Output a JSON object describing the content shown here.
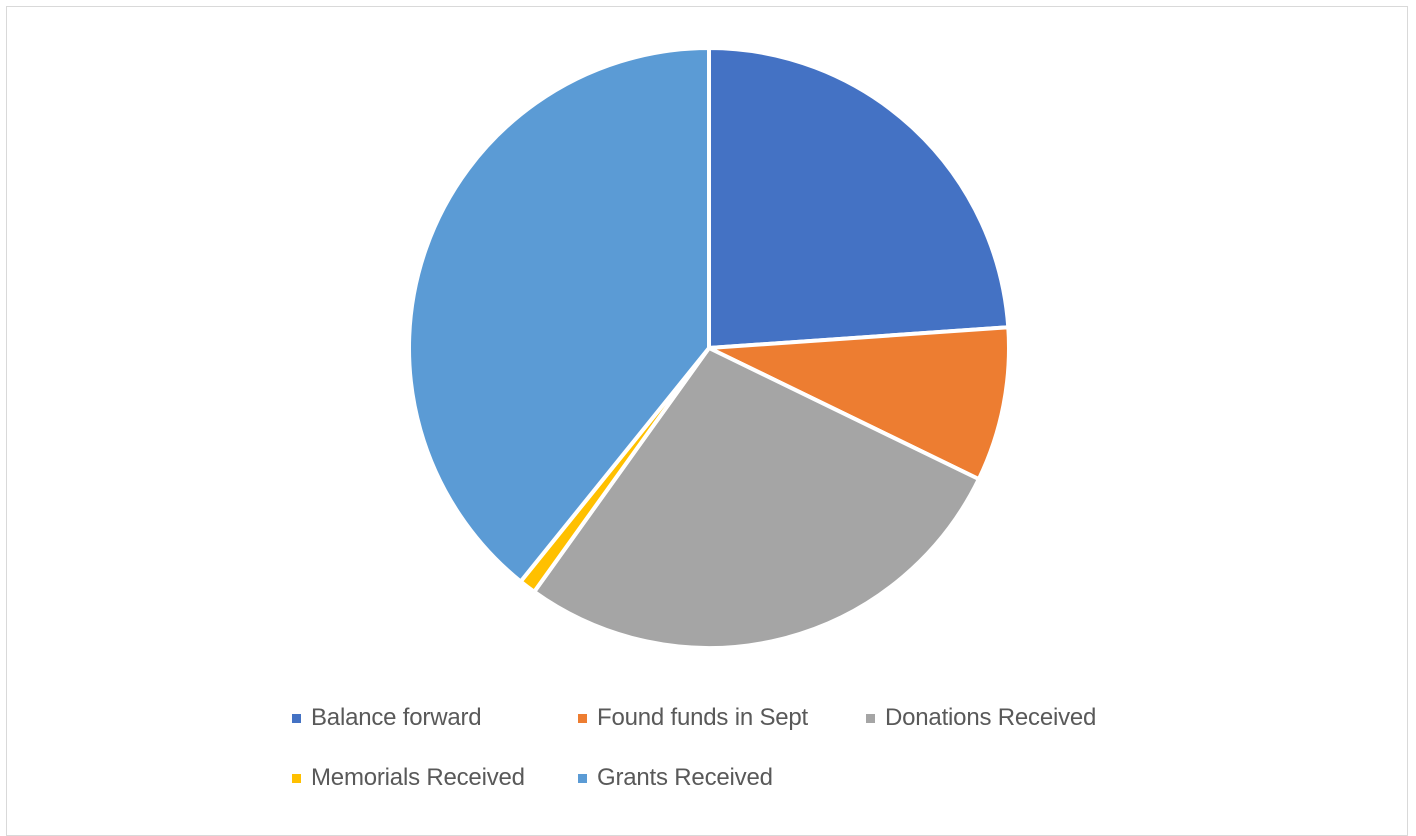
{
  "chart_data": {
    "type": "pie",
    "title": "",
    "start_angle_deg": 0,
    "direction": "clockwise",
    "legend_position": "bottom",
    "slices": [
      {
        "label": "Balance forward",
        "value": 23.9,
        "color": "#4472C4"
      },
      {
        "label": "Found funds in Sept",
        "value": 8.3,
        "color": "#ED7D31"
      },
      {
        "label": "Donations Received",
        "value": 27.7,
        "color": "#A5A5A5"
      },
      {
        "label": "Memorials Received",
        "value": 0.9,
        "color": "#FFC000"
      },
      {
        "label": "Grants Received",
        "value": 39.2,
        "color": "#5B9BD5"
      }
    ]
  }
}
